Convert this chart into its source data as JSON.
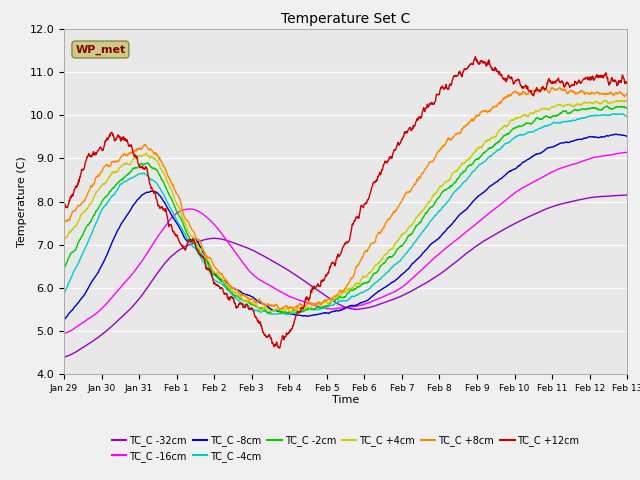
{
  "title": "Temperature Set C",
  "xlabel": "Time",
  "ylabel": "Temperature (C)",
  "ylim": [
    4.0,
    12.0
  ],
  "yticks": [
    4.0,
    5.0,
    6.0,
    7.0,
    8.0,
    9.0,
    10.0,
    11.0,
    12.0
  ],
  "xtick_labels": [
    "Jan 29",
    "Jan 30",
    "Jan 31",
    "Feb 1",
    "Feb 2",
    "Feb 3",
    "Feb 4",
    "Feb 5",
    "Feb 6",
    "Feb 7",
    "Feb 8",
    "Feb 9",
    "Feb 10",
    "Feb 11",
    "Feb 12",
    "Feb 13"
  ],
  "series": [
    {
      "label": "TC_C -32cm",
      "color": "#9900cc"
    },
    {
      "label": "TC_C -16cm",
      "color": "#ff00ff"
    },
    {
      "label": "TC_C -8cm",
      "color": "#0000cc"
    },
    {
      "label": "TC_C -4cm",
      "color": "#00cccc"
    },
    {
      "label": "TC_C -2cm",
      "color": "#00cc00"
    },
    {
      "label": "TC_C +4cm",
      "color": "#cccc00"
    },
    {
      "label": "TC_C +8cm",
      "color": "#ff8800"
    },
    {
      "label": "TC_C +12cm",
      "color": "#cc0000"
    }
  ],
  "wp_met_box_color": "#cccc88",
  "wp_met_text_color": "#880000",
  "plot_bg": "#e8e8e8",
  "fig_bg": "#f0f0f0",
  "grid_color": "#ffffff"
}
